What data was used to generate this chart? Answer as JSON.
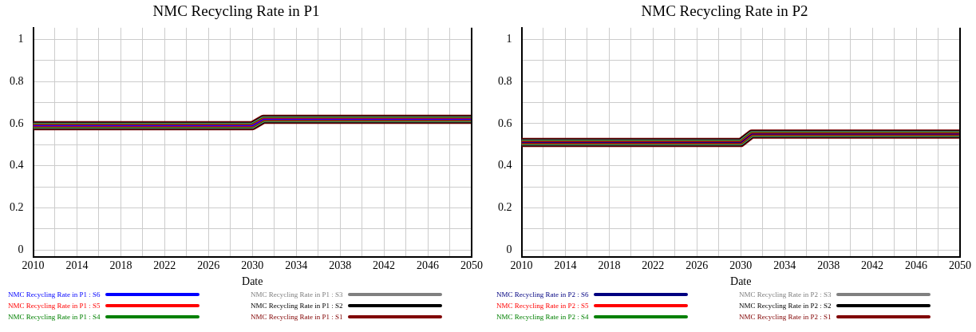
{
  "chart_data": [
    {
      "type": "line",
      "title": "NMC Recycling Rate in P1",
      "xlabel": "Date",
      "x": [
        2010,
        2030,
        2031,
        2050
      ],
      "xlim": [
        2010,
        2050
      ],
      "xticks": [
        2010,
        {
          "value": 2012,
          "label": null
        },
        2014,
        {
          "value": 2016,
          "label": null
        },
        2018,
        {
          "value": 2020,
          "label": null
        },
        2022,
        {
          "value": 2024,
          "label": null
        },
        2026,
        {
          "value": 2028,
          "label": null
        },
        2030,
        {
          "value": 2032,
          "label": null
        },
        2034,
        {
          "value": 2036,
          "label": null
        },
        2038,
        {
          "value": 2040,
          "label": null
        },
        2042,
        {
          "value": 2044,
          "label": null
        },
        2046,
        {
          "value": 2048,
          "label": null
        },
        2050
      ],
      "ylim": [
        -0.035,
        1.055
      ],
      "yticks": [
        0,
        {
          "value": 0.1,
          "label": null
        },
        0.2,
        {
          "value": 0.3,
          "label": null
        },
        0.4,
        {
          "value": 0.5,
          "label": null
        },
        0.6,
        {
          "value": 0.7,
          "label": null
        },
        0.8,
        {
          "value": 0.9,
          "label": null
        },
        1
      ],
      "grid": true,
      "legend": "bottom",
      "marker": "none",
      "line_style": "solid",
      "series": [
        {
          "name": "NMC Recycling Rate in P1 : S6",
          "color": "#0000ff",
          "values": [
            0.59,
            0.59,
            0.62,
            0.62
          ]
        },
        {
          "name": "NMC Recycling Rate in P1 : S5",
          "color": "#ff0000",
          "values": [
            0.59,
            0.59,
            0.62,
            0.62
          ]
        },
        {
          "name": "NMC Recycling Rate in P1 : S4",
          "color": "#008000",
          "values": [
            0.59,
            0.59,
            0.62,
            0.62
          ]
        },
        {
          "name": "NMC Recycling Rate in P1 : S3",
          "color": "#808080",
          "values": [
            0.59,
            0.59,
            0.62,
            0.62
          ]
        },
        {
          "name": "NMC Recycling Rate in P1 : S2",
          "color": "#000000",
          "values": [
            0.59,
            0.59,
            0.62,
            0.62
          ]
        },
        {
          "name": "NMC Recycling Rate in P1 : S1",
          "color": "#800000",
          "values": [
            0.59,
            0.59,
            0.62,
            0.62
          ]
        }
      ]
    },
    {
      "type": "line",
      "title": "NMC Recycling Rate in P2",
      "xlabel": "Date",
      "x": [
        2010,
        2030,
        2031,
        2050
      ],
      "xlim": [
        2010,
        2050
      ],
      "xticks": [
        2010,
        {
          "value": 2012,
          "label": null
        },
        2014,
        {
          "value": 2016,
          "label": null
        },
        2018,
        {
          "value": 2020,
          "label": null
        },
        2022,
        {
          "value": 2024,
          "label": null
        },
        2026,
        {
          "value": 2028,
          "label": null
        },
        2030,
        {
          "value": 2032,
          "label": null
        },
        2034,
        {
          "value": 2036,
          "label": null
        },
        2038,
        {
          "value": 2040,
          "label": null
        },
        2042,
        {
          "value": 2044,
          "label": null
        },
        2046,
        {
          "value": 2048,
          "label": null
        },
        2050
      ],
      "ylim": [
        -0.035,
        1.055
      ],
      "yticks": [
        0,
        {
          "value": 0.1,
          "label": null
        },
        0.2,
        {
          "value": 0.3,
          "label": null
        },
        0.4,
        {
          "value": 0.5,
          "label": null
        },
        0.6,
        {
          "value": 0.7,
          "label": null
        },
        0.8,
        {
          "value": 0.9,
          "label": null
        },
        1
      ],
      "grid": true,
      "legend": "bottom",
      "marker": "none",
      "line_style": "solid",
      "series": [
        {
          "name": "NMC Recycling Rate in P2 : S6",
          "color": "#000080",
          "values": [
            0.51,
            0.51,
            0.55,
            0.55
          ]
        },
        {
          "name": "NMC Recycling Rate in P2 : S5",
          "color": "#ff0000",
          "values": [
            0.51,
            0.51,
            0.55,
            0.55
          ]
        },
        {
          "name": "NMC Recycling Rate in P2 : S4",
          "color": "#008000",
          "values": [
            0.51,
            0.51,
            0.55,
            0.55
          ]
        },
        {
          "name": "NMC Recycling Rate in P2 : S3",
          "color": "#808080",
          "values": [
            0.51,
            0.51,
            0.55,
            0.55
          ]
        },
        {
          "name": "NMC Recycling Rate in P2 : S2",
          "color": "#000000",
          "values": [
            0.51,
            0.51,
            0.55,
            0.55
          ]
        },
        {
          "name": "NMC Recycling Rate in P2 : S1",
          "color": "#800000",
          "values": [
            0.51,
            0.51,
            0.55,
            0.55
          ]
        }
      ]
    }
  ]
}
